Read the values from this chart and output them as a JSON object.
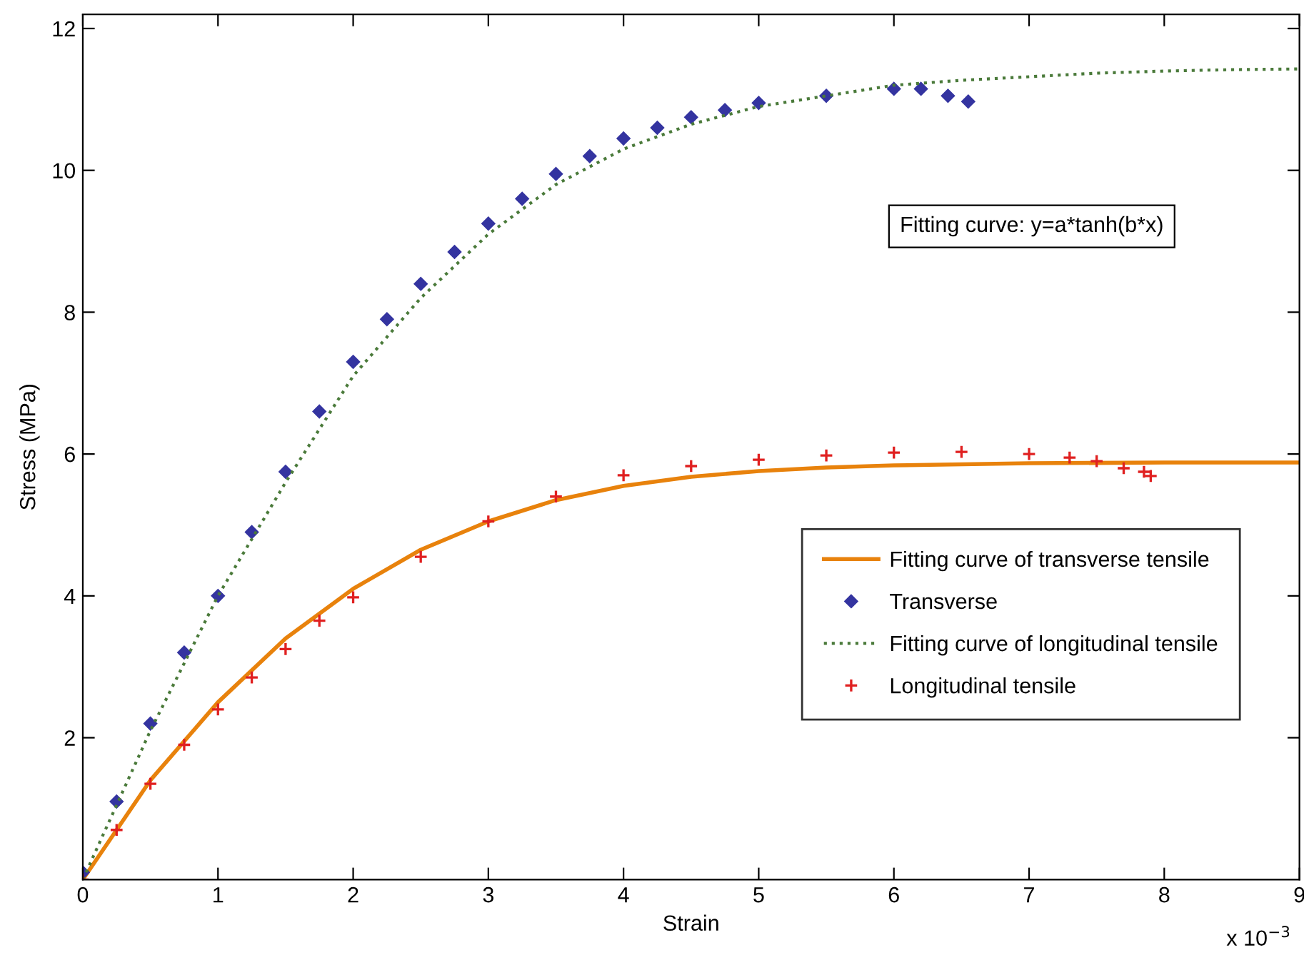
{
  "chart_data": {
    "type": "scatter",
    "xlabel": "Strain",
    "ylabel": "Stress (MPa)",
    "xlim": [
      0,
      9
    ],
    "xticks": [
      0,
      1,
      2,
      3,
      4,
      5,
      6,
      7,
      8,
      9
    ],
    "ylim": [
      0,
      12.2
    ],
    "yticks": [
      2,
      4,
      6,
      8,
      10,
      12
    ],
    "grid": false,
    "legend": "bottom right",
    "annotations": [
      "Fitting curve: y=a*tanh(b*x)",
      "x 10$^{−3}$"
    ],
    "series": [
      {
        "name": "Fitting curve of transverse tensile",
        "type": "line",
        "line_style": "solid",
        "marker": "none",
        "color": "#e8820c",
        "x": [
          0,
          0.5,
          1,
          1.5,
          2,
          2.5,
          3,
          3.5,
          4,
          4.5,
          5,
          5.5,
          6,
          7,
          8,
          9
        ],
        "values": [
          0,
          1.4,
          2.5,
          3.4,
          4.1,
          4.65,
          5.05,
          5.35,
          5.55,
          5.68,
          5.76,
          5.81,
          5.84,
          5.87,
          5.88,
          5.88
        ]
      },
      {
        "name": "Transverse",
        "type": "scatter",
        "marker": "diamond",
        "color": "#3434a0",
        "x": [
          0,
          0.25,
          0.5,
          0.75,
          1,
          1.25,
          1.5,
          1.75,
          2,
          2.25,
          2.5,
          2.75,
          3,
          3.25,
          3.5,
          3.75,
          4,
          4.25,
          4.5,
          4.75,
          5,
          5.5,
          6,
          6.2,
          6.4,
          6.55
        ],
        "values": [
          0.1,
          1.1,
          2.2,
          3.2,
          4.0,
          4.9,
          5.75,
          6.6,
          7.3,
          7.9,
          8.4,
          8.85,
          9.25,
          9.6,
          9.95,
          10.2,
          10.45,
          10.6,
          10.75,
          10.85,
          10.95,
          11.05,
          11.15,
          11.15,
          11.05,
          10.97
        ]
      },
      {
        "name": "Fitting curve of longitudinal tensile",
        "type": "line",
        "line_style": "dotted",
        "marker": "none",
        "color": "#4a7a3a",
        "x": [
          0,
          0.5,
          1,
          1.5,
          2,
          2.5,
          3,
          3.5,
          4,
          4.5,
          5,
          5.5,
          6,
          6.5,
          7,
          7.5,
          8,
          8.5,
          9
        ],
        "values": [
          0,
          2.1,
          4.0,
          5.6,
          7.1,
          8.2,
          9.1,
          9.8,
          10.3,
          10.65,
          10.9,
          11.05,
          11.2,
          11.27,
          11.32,
          11.37,
          11.4,
          11.42,
          11.43
        ]
      },
      {
        "name": "Longitudinal tensile",
        "type": "scatter",
        "marker": "cross",
        "color": "#e02020",
        "x": [
          0,
          0.25,
          0.5,
          0.75,
          1,
          1.25,
          1.5,
          1.75,
          2,
          2.5,
          3,
          3.5,
          4,
          4.5,
          5,
          5.5,
          6,
          6.5,
          7,
          7.3,
          7.5,
          7.7,
          7.85,
          7.9
        ],
        "values": [
          0,
          0.7,
          1.35,
          1.9,
          2.4,
          2.85,
          3.25,
          3.65,
          3.98,
          4.55,
          5.05,
          5.4,
          5.7,
          5.83,
          5.92,
          5.98,
          6.02,
          6.03,
          6.0,
          5.95,
          5.9,
          5.8,
          5.75,
          5.69
        ]
      }
    ]
  }
}
